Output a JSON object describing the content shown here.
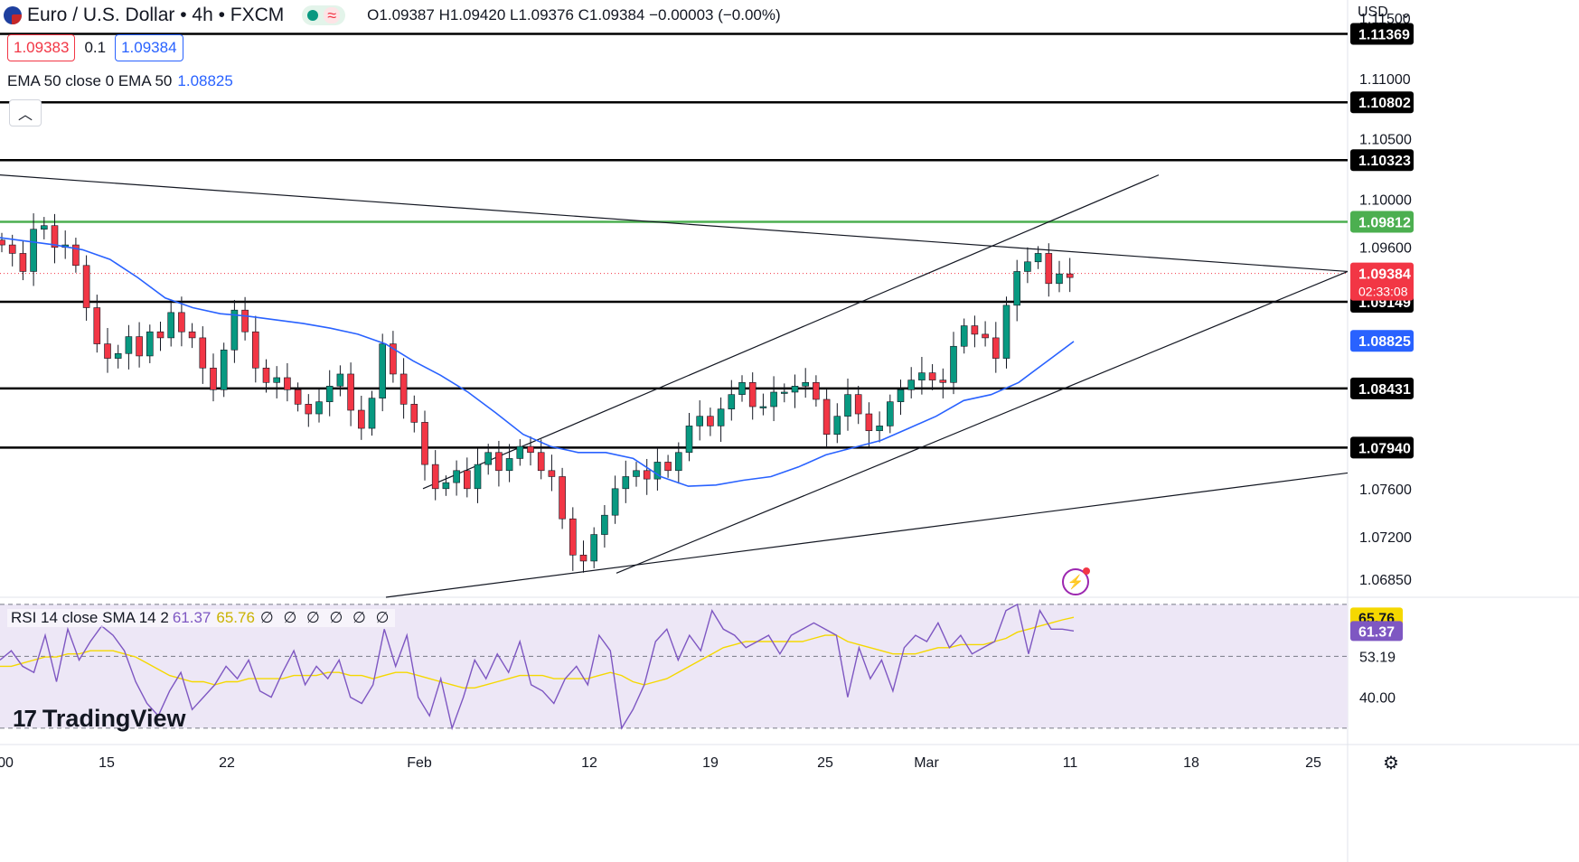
{
  "header": {
    "symbol_title": "Euro / U.S. Dollar • 4h • FXCM",
    "ohlc": "O1.09387 H1.09420 L1.09376 C1.09384 −0.00003 (−0.00%)",
    "bid": "1.09383",
    "spread": "0.1",
    "ask": "1.09384",
    "currency": "USD"
  },
  "ema_label": {
    "text": "EMA 50 close 0 EMA 50",
    "value": "1.08825"
  },
  "rsi_label": {
    "text": "RSI 14 close SMA 14 2",
    "rsi": "61.37",
    "sma": "65.76",
    "extras": "∅ ∅ ∅ ∅ ∅ ∅"
  },
  "brand": {
    "name": "TradingView",
    "mark": "17"
  },
  "colors": {
    "up": "#089981",
    "down": "#f23645",
    "ema": "#2962ff",
    "green_level": "#4caf50",
    "rsi": "#7e57c2",
    "rsi_sma": "#f5d800",
    "rsi_band": "#ede7f6"
  },
  "chart_data": {
    "type": "candlestick",
    "symbol": "EUR/USD",
    "timeframe": "4h",
    "ylim": [
      1.067,
      1.1165
    ],
    "price_ticks": [
      "1.11500",
      "1.11000",
      "1.10500",
      "1.10000",
      "1.09600",
      "1.07600",
      "1.07200",
      "1.06850"
    ],
    "x_ticks": [
      "00",
      "15",
      "22",
      "Feb",
      "12",
      "19",
      "25",
      "Mar",
      "11",
      "18",
      "25"
    ],
    "horizontal_levels": [
      {
        "value": 1.11369,
        "label": "1.11369",
        "color": "#000000"
      },
      {
        "value": 1.10802,
        "label": "1.10802",
        "color": "#000000"
      },
      {
        "value": 1.10323,
        "label": "1.10323",
        "color": "#000000"
      },
      {
        "value": 1.09812,
        "label": "1.09812",
        "color": "#4caf50"
      },
      {
        "value": 1.09149,
        "label": "1.09149",
        "color": "#000000"
      },
      {
        "value": 1.08431,
        "label": "1.08431",
        "color": "#000000"
      },
      {
        "value": 1.0794,
        "label": "1.07940",
        "color": "#000000"
      }
    ],
    "current_price": {
      "value": 1.09384,
      "label": "1.09384",
      "countdown": "02:33:08"
    },
    "ema_badge": {
      "value": 1.08825,
      "label": "1.08825"
    },
    "trendlines": [
      {
        "from": [
          1.102,
          0
        ],
        "to": [
          1.094,
          1491
        ]
      },
      {
        "from": [
          1.076,
          468
        ],
        "to": [
          1.102,
          1282
        ]
      },
      {
        "from": [
          1.069,
          682
        ],
        "to": [
          1.094,
          1491
        ]
      },
      {
        "from": [
          1.067,
          427
        ],
        "to": [
          1.0773,
          1491
        ]
      }
    ],
    "close_path": [
      1.0962,
      1.0955,
      1.094,
      1.0975,
      1.0978,
      1.096,
      1.0962,
      1.0945,
      1.091,
      1.088,
      1.0868,
      1.0872,
      1.0886,
      1.087,
      1.089,
      1.0885,
      1.0906,
      1.089,
      1.0885,
      1.086,
      1.0842,
      1.0875,
      1.0908,
      1.089,
      1.086,
      1.0848,
      1.0852,
      1.0842,
      1.083,
      1.0822,
      1.0832,
      1.0845,
      1.0855,
      1.0825,
      1.081,
      1.0835,
      1.088,
      1.0855,
      1.083,
      1.0815,
      1.078,
      1.076,
      1.0765,
      1.0775,
      1.076,
      1.078,
      1.079,
      1.0775,
      1.0785,
      1.0795,
      1.079,
      1.0775,
      1.077,
      1.0735,
      1.0705,
      1.07,
      1.0722,
      1.0738,
      1.076,
      1.077,
      1.0775,
      1.0768,
      1.0782,
      1.0775,
      1.079,
      1.0812,
      1.082,
      1.0812,
      1.0826,
      1.0838,
      1.0848,
      1.0828,
      1.0828,
      1.084,
      1.084,
      1.0845,
      1.0848,
      1.0834,
      1.0805,
      1.082,
      1.0838,
      1.0822,
      1.0808,
      1.0812,
      1.0832,
      1.0842,
      1.085,
      1.0856,
      1.085,
      1.0848,
      1.0878,
      1.0895,
      1.0888,
      1.0885,
      1.0868,
      1.0912,
      1.094,
      1.0948,
      1.0955,
      1.093,
      1.0938,
      1.0935
    ],
    "ema_path": [
      1.0968,
      1.0965,
      1.0962,
      1.0958,
      1.095,
      1.0935,
      1.0918,
      1.091,
      1.0905,
      1.0903,
      1.09,
      1.0897,
      1.0893,
      1.0888,
      1.088,
      1.0866,
      1.0854,
      1.084,
      1.0823,
      1.0805,
      1.0795,
      1.079,
      1.079,
      1.0785,
      1.077,
      1.0762,
      1.0763,
      1.0767,
      1.077,
      1.0778,
      1.0788,
      1.0794,
      1.08,
      1.081,
      1.082,
      1.0833,
      1.0838,
      1.0848,
      1.0865,
      1.0882
    ],
    "rsi": {
      "ylim": [
        25,
        72
      ],
      "levels": [
        70,
        53.19,
        40,
        30
      ],
      "tick_labels": [
        "53.19",
        "40.00"
      ],
      "last": "61.37",
      "sma_last": "65.76",
      "values": [
        52,
        55,
        50,
        48,
        60,
        45,
        62,
        52,
        58,
        63,
        60,
        55,
        45,
        38,
        34,
        42,
        48,
        36,
        40,
        44,
        50,
        46,
        52,
        42,
        40,
        48,
        55,
        44,
        50,
        46,
        52,
        40,
        38,
        44,
        62,
        50,
        60,
        40,
        34,
        46,
        30,
        40,
        52,
        46,
        54,
        48,
        58,
        44,
        42,
        38,
        46,
        50,
        44,
        60,
        55,
        30,
        36,
        44,
        58,
        62,
        52,
        60,
        55,
        68,
        62,
        60,
        56,
        58,
        60,
        54,
        60,
        62,
        64,
        62,
        60,
        40,
        56,
        46,
        52,
        42,
        56,
        60,
        58,
        64,
        56,
        60,
        54,
        56,
        58,
        68,
        70,
        54,
        68,
        62,
        62,
        61.4
      ],
      "sma_values": [
        50,
        50,
        51,
        52,
        53,
        53,
        54,
        54,
        55,
        55,
        55,
        54,
        53,
        51,
        49,
        47,
        46,
        45,
        45,
        44,
        45,
        45,
        46,
        46,
        46,
        46,
        47,
        47,
        47,
        48,
        48,
        47,
        47,
        46,
        47,
        48,
        48,
        47,
        46,
        45,
        44,
        43,
        43,
        44,
        45,
        46,
        47,
        47,
        47,
        46,
        46,
        46,
        46,
        47,
        48,
        47,
        45,
        44,
        45,
        46,
        48,
        50,
        52,
        54,
        56,
        57,
        58,
        58,
        58,
        58,
        58,
        58,
        59,
        60,
        60,
        58,
        57,
        56,
        55,
        54,
        54,
        54,
        55,
        56,
        56,
        57,
        57,
        57,
        58,
        59,
        61,
        62,
        63,
        64,
        65,
        65.8
      ]
    }
  }
}
